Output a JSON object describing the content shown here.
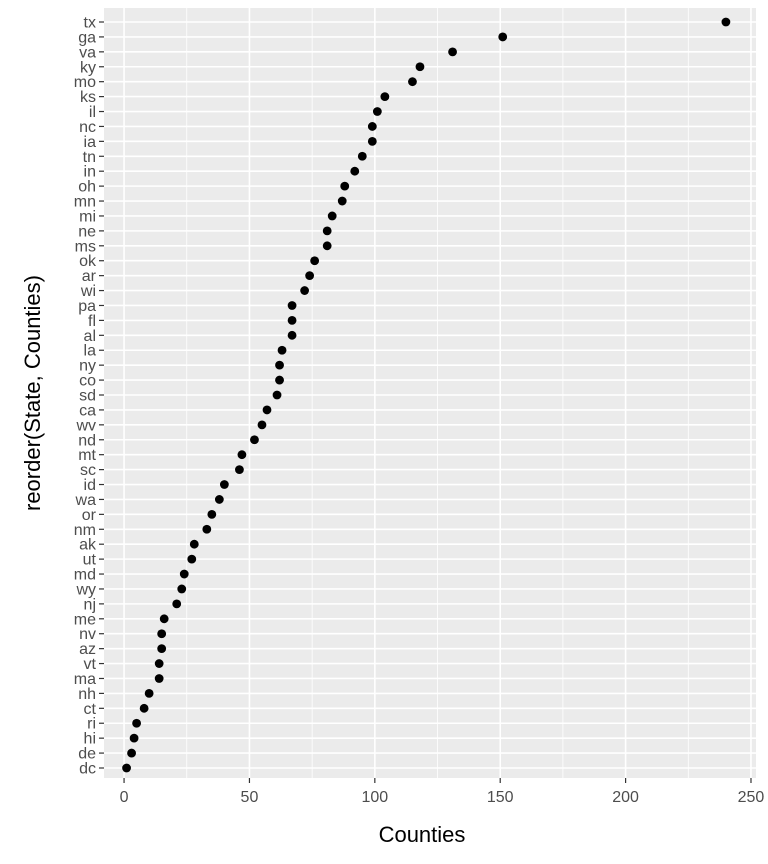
{
  "chart_data": {
    "type": "scatter",
    "xlabel": "Counties",
    "ylabel": "reorder(State, Counties)",
    "xlim": [
      -8,
      252
    ],
    "xticks": [
      0,
      50,
      100,
      150,
      200,
      250
    ],
    "xtick_labels": [
      "0",
      "50",
      "100",
      "150",
      "200",
      "250"
    ],
    "grid": true,
    "background": "#ebebeb",
    "point_color": "#000000",
    "points": [
      {
        "state": "tx",
        "counties": 240
      },
      {
        "state": "ga",
        "counties": 151
      },
      {
        "state": "va",
        "counties": 131
      },
      {
        "state": "ky",
        "counties": 118
      },
      {
        "state": "mo",
        "counties": 115
      },
      {
        "state": "ks",
        "counties": 104
      },
      {
        "state": "il",
        "counties": 101
      },
      {
        "state": "nc",
        "counties": 99
      },
      {
        "state": "ia",
        "counties": 99
      },
      {
        "state": "tn",
        "counties": 95
      },
      {
        "state": "in",
        "counties": 92
      },
      {
        "state": "oh",
        "counties": 88
      },
      {
        "state": "mn",
        "counties": 87
      },
      {
        "state": "mi",
        "counties": 83
      },
      {
        "state": "ne",
        "counties": 81
      },
      {
        "state": "ms",
        "counties": 81
      },
      {
        "state": "ok",
        "counties": 76
      },
      {
        "state": "ar",
        "counties": 74
      },
      {
        "state": "wi",
        "counties": 72
      },
      {
        "state": "pa",
        "counties": 67
      },
      {
        "state": "fl",
        "counties": 67
      },
      {
        "state": "al",
        "counties": 67
      },
      {
        "state": "la",
        "counties": 63
      },
      {
        "state": "ny",
        "counties": 62
      },
      {
        "state": "co",
        "counties": 62
      },
      {
        "state": "sd",
        "counties": 61
      },
      {
        "state": "ca",
        "counties": 57
      },
      {
        "state": "wv",
        "counties": 55
      },
      {
        "state": "nd",
        "counties": 52
      },
      {
        "state": "mt",
        "counties": 47
      },
      {
        "state": "sc",
        "counties": 46
      },
      {
        "state": "id",
        "counties": 40
      },
      {
        "state": "wa",
        "counties": 38
      },
      {
        "state": "or",
        "counties": 35
      },
      {
        "state": "nm",
        "counties": 33
      },
      {
        "state": "ak",
        "counties": 28
      },
      {
        "state": "ut",
        "counties": 27
      },
      {
        "state": "md",
        "counties": 24
      },
      {
        "state": "wy",
        "counties": 23
      },
      {
        "state": "nj",
        "counties": 21
      },
      {
        "state": "me",
        "counties": 16
      },
      {
        "state": "nv",
        "counties": 15
      },
      {
        "state": "az",
        "counties": 15
      },
      {
        "state": "vt",
        "counties": 14
      },
      {
        "state": "ma",
        "counties": 14
      },
      {
        "state": "nh",
        "counties": 10
      },
      {
        "state": "ct",
        "counties": 8
      },
      {
        "state": "ri",
        "counties": 5
      },
      {
        "state": "hi",
        "counties": 4
      },
      {
        "state": "de",
        "counties": 3
      },
      {
        "state": "dc",
        "counties": 1
      }
    ]
  }
}
